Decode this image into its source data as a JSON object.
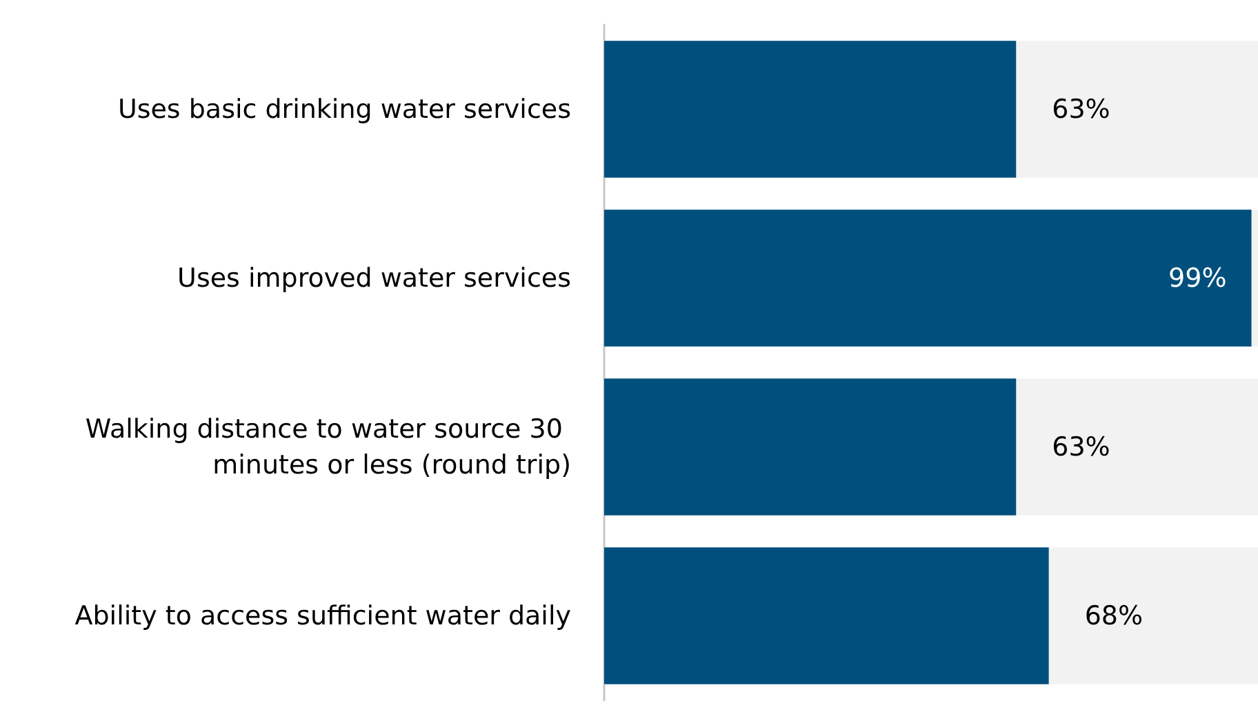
{
  "chart_data": {
    "type": "bar",
    "orientation": "horizontal",
    "categories": [
      "Uses basic drinking water services",
      "Uses improved water services",
      "Walking distance to water source 30 minutes or less (round trip)",
      "Ability to access sufficient water daily"
    ],
    "values": [
      63,
      99,
      63,
      68
    ],
    "color": "#004f7c",
    "value_labels": [
      "63%",
      "99%",
      "63%",
      "68%"
    ],
    "xlim": [
      0,
      100
    ],
    "tick_labels": "y"
  }
}
